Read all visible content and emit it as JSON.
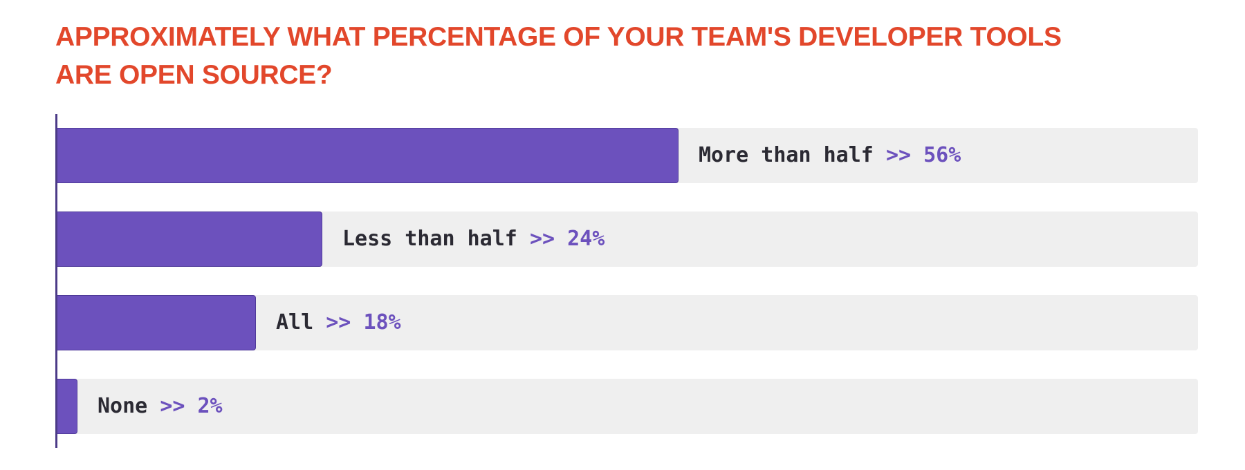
{
  "title": "APPROXIMATELY WHAT PERCENTAGE OF YOUR TEAM'S DEVELOPER TOOLS ARE OPEN SOURCE?",
  "colors": {
    "title": "#e2472b",
    "bar": "#6c51bd",
    "track": "#efefef",
    "axis": "#4b3a87",
    "label_text": "#2b2a33"
  },
  "chart_data": {
    "type": "bar",
    "orientation": "horizontal",
    "title": "APPROXIMATELY WHAT PERCENTAGE OF YOUR TEAM'S DEVELOPER TOOLS ARE OPEN SOURCE?",
    "categories": [
      "More than half",
      "Less than half",
      "All",
      "None"
    ],
    "values": [
      56,
      24,
      18,
      2
    ],
    "value_labels": [
      "56%",
      "24%",
      "18%",
      "2%"
    ],
    "separator": ">>",
    "xlim": [
      0,
      100
    ],
    "xlabel": "",
    "ylabel": "",
    "grid": false,
    "legend": "none"
  }
}
